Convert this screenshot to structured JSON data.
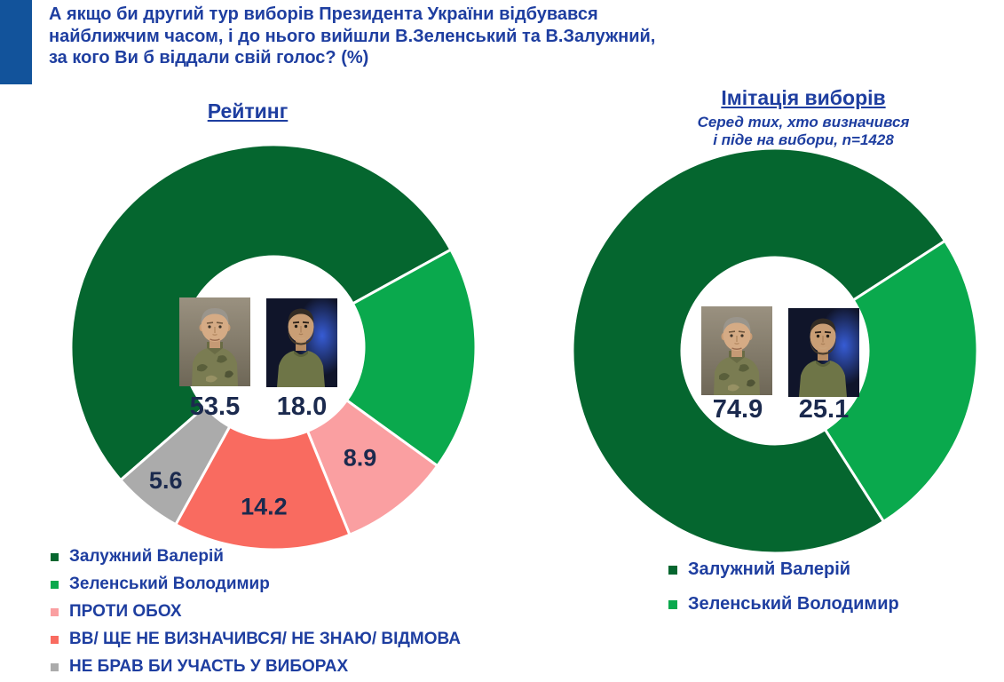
{
  "page": {
    "background": "#ffffff",
    "accent_bar_color": "#12539b",
    "title": "А якщо би другий тур виборів Президента України відбувався\nнайближчим часом, і до нього вийшли В.Зеленський та В.Залужний,\nза кого Ви б віддали свій голос? (%)",
    "title_color": "#1e3ea0",
    "value_text_color": "#1b2a4e"
  },
  "chart_data": [
    {
      "type": "pie",
      "subtype": "donut",
      "title": "Рейтинг",
      "subtitle": "",
      "legend_position": "bottom-left",
      "rotation_deg": 229,
      "inner_radius_ratio": 0.45,
      "separator_color": "#ffffff",
      "slices": [
        {
          "label": "Залужний Валерій",
          "value": 53.5,
          "display": "53.5",
          "color": "#05662f",
          "label_placement": "center"
        },
        {
          "label": "Зеленський Володимир",
          "value": 18.0,
          "display": "18.0",
          "color": "#0aa94d",
          "label_placement": "center"
        },
        {
          "label": "ПРОТИ ОБОХ",
          "value": 8.9,
          "display": "8.9",
          "color": "#fa9fa1",
          "label_placement": "slice",
          "label_radius": 158
        },
        {
          "label": "ВВ/ ЩЕ НЕ ВИЗНАЧИВСЯ/ НЕ ЗНАЮ/ ВІДМОВА",
          "value": 14.2,
          "display": "14.2",
          "color": "#f96b60",
          "label_placement": "slice",
          "label_radius": 180
        },
        {
          "label": "НЕ БРАВ БИ УЧАСТЬ У ВИБОРАХ",
          "value": 5.6,
          "display": "5.6",
          "color": "#ababab",
          "label_placement": "slice",
          "label_radius": 193
        }
      ],
      "center_images": [
        "zaluzhnyi-photo",
        "zelenskyi-photo"
      ]
    },
    {
      "type": "pie",
      "subtype": "donut",
      "title": "Імітація виборів",
      "subtitle": "Серед тих, хто визначився\nі піде на вибори, n=1428",
      "legend_position": "bottom",
      "rotation_deg": 147.5,
      "inner_radius_ratio": 0.46,
      "separator_color": "#ffffff",
      "slices": [
        {
          "label": "Залужний Валерій",
          "value": 74.9,
          "display": "74.9",
          "color": "#05662f",
          "label_placement": "center"
        },
        {
          "label": "Зеленський Володимир",
          "value": 25.1,
          "display": "25.1",
          "color": "#0aa94d",
          "label_placement": "center"
        }
      ],
      "center_images": [
        "zaluzhnyi-photo",
        "zelenskyi-photo"
      ]
    }
  ]
}
